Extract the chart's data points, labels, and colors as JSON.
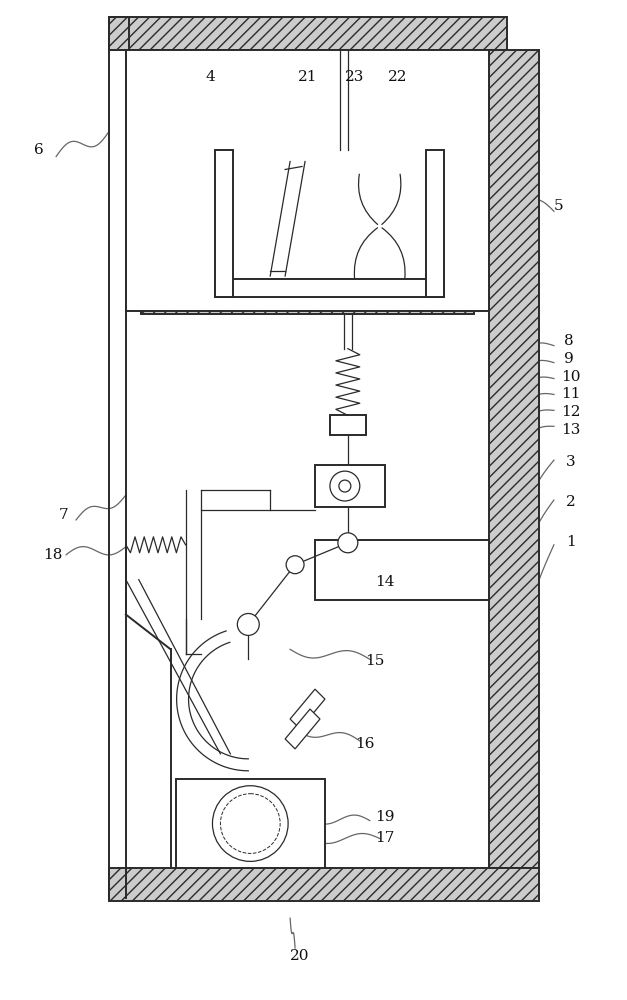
{
  "bg_color": "#ffffff",
  "line_color": "#2a2a2a",
  "hatch_fc": "#cccccc",
  "label_color": "#111111",
  "ref_color": "#666666",
  "figsize": [
    6.27,
    10.0
  ],
  "dpi": 100,
  "lw_main": 1.4,
  "lw_thin": 0.9,
  "label_fs": 11
}
